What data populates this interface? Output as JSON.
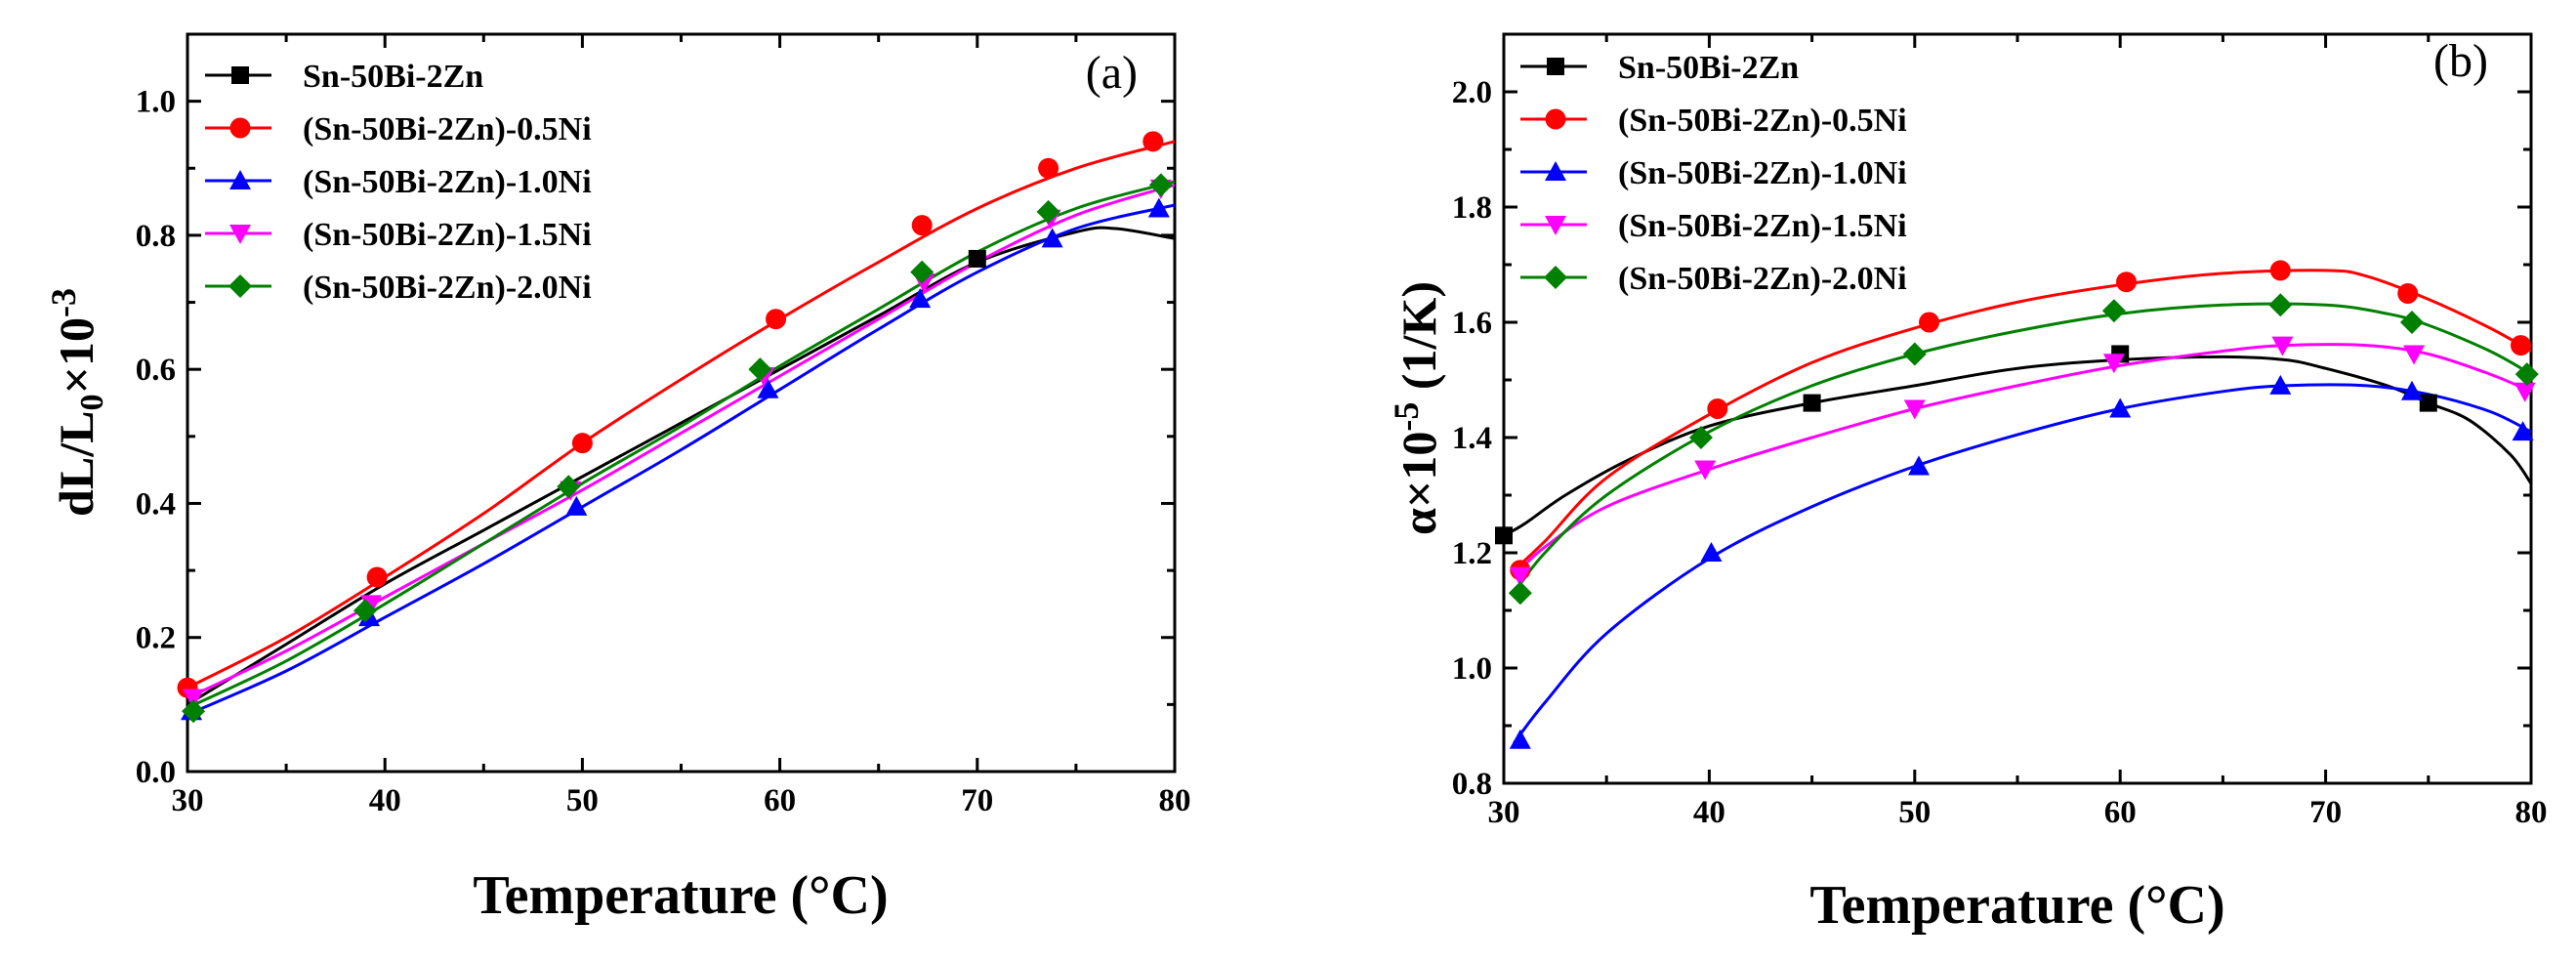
{
  "chart_data": [
    {
      "type": "line",
      "panel_label": "(a)",
      "xlabel": "Temperature (°C)",
      "ylabel": {
        "main": "dL/L",
        "sub": "0",
        "tail": "×10",
        "sup": "-3"
      },
      "xlim": [
        30,
        80
      ],
      "ylim": [
        0.0,
        1.1
      ],
      "xticks": [
        30,
        40,
        50,
        60,
        70,
        80
      ],
      "yticks": [
        0.0,
        0.2,
        0.4,
        0.6,
        0.8,
        1.0
      ],
      "ytick_labels": [
        "0.0",
        "0.2",
        "0.4",
        "0.6",
        "0.8",
        "1.0"
      ],
      "grid": false,
      "legend_position": "top-left",
      "series": [
        {
          "name": "Sn-50Bi-2Zn",
          "color": "#000000",
          "marker": "square",
          "curve": [
            [
              30,
              0.1
            ],
            [
              35,
              0.19
            ],
            [
              40,
              0.28
            ],
            [
              45,
              0.36
            ],
            [
              50,
              0.44
            ],
            [
              55,
              0.52
            ],
            [
              60,
              0.6
            ],
            [
              65,
              0.68
            ],
            [
              70,
              0.76
            ],
            [
              75,
              0.805
            ],
            [
              77,
              0.81
            ],
            [
              80,
              0.795
            ]
          ],
          "markers": [
            [
              70,
              0.765
            ]
          ]
        },
        {
          "name": "(Sn-50Bi-2Zn)-0.5Ni",
          "color": "#ff0000",
          "marker": "circle",
          "curve": [
            [
              30,
              0.125
            ],
            [
              35,
              0.2
            ],
            [
              40,
              0.29
            ],
            [
              45,
              0.385
            ],
            [
              50,
              0.49
            ],
            [
              55,
              0.585
            ],
            [
              60,
              0.675
            ],
            [
              65,
              0.76
            ],
            [
              70,
              0.84
            ],
            [
              75,
              0.9
            ],
            [
              80,
              0.94
            ]
          ],
          "markers": [
            [
              30,
              0.125
            ],
            [
              39.6,
              0.29
            ],
            [
              50,
              0.49
            ],
            [
              59.8,
              0.675
            ],
            [
              67.2,
              0.815
            ],
            [
              73.6,
              0.9
            ],
            [
              78.9,
              0.94
            ]
          ]
        },
        {
          "name": "(Sn-50Bi-2Zn)-1.0Ni",
          "color": "#0000ff",
          "marker": "triangle-up",
          "curve": [
            [
              30,
              0.085
            ],
            [
              35,
              0.15
            ],
            [
              40,
              0.23
            ],
            [
              45,
              0.31
            ],
            [
              50,
              0.395
            ],
            [
              55,
              0.48
            ],
            [
              60,
              0.57
            ],
            [
              65,
              0.66
            ],
            [
              70,
              0.745
            ],
            [
              75,
              0.81
            ],
            [
              80,
              0.845
            ]
          ],
          "markers": [
            [
              30.2,
              0.09
            ],
            [
              39.2,
              0.23
            ],
            [
              49.7,
              0.395
            ],
            [
              59.4,
              0.57
            ],
            [
              67.1,
              0.705
            ],
            [
              73.8,
              0.795
            ],
            [
              79.2,
              0.84
            ]
          ]
        },
        {
          "name": "(Sn-50Bi-2Zn)-1.5Ni",
          "color": "#ff00ff",
          "marker": "triangle-down",
          "curve": [
            [
              30,
              0.11
            ],
            [
              35,
              0.18
            ],
            [
              40,
              0.26
            ],
            [
              45,
              0.34
            ],
            [
              50,
              0.42
            ],
            [
              55,
              0.505
            ],
            [
              60,
              0.59
            ],
            [
              65,
              0.675
            ],
            [
              70,
              0.76
            ],
            [
              75,
              0.83
            ],
            [
              80,
              0.875
            ]
          ],
          "markers": [
            [
              30.3,
              0.11
            ],
            [
              39.3,
              0.25
            ],
            [
              49.4,
              0.42
            ],
            [
              59.2,
              0.59
            ],
            [
              67.3,
              0.73
            ],
            [
              73.7,
              0.825
            ],
            [
              79.3,
              0.87
            ]
          ]
        },
        {
          "name": "(Sn-50Bi-2Zn)-2.0Ni",
          "color": "#008000",
          "marker": "diamond",
          "curve": [
            [
              30,
              0.095
            ],
            [
              35,
              0.165
            ],
            [
              40,
              0.25
            ],
            [
              45,
              0.34
            ],
            [
              50,
              0.43
            ],
            [
              55,
              0.515
            ],
            [
              60,
              0.605
            ],
            [
              65,
              0.69
            ],
            [
              70,
              0.775
            ],
            [
              75,
              0.84
            ],
            [
              80,
              0.88
            ]
          ],
          "markers": [
            [
              30.3,
              0.09
            ],
            [
              39,
              0.24
            ],
            [
              49.3,
              0.425
            ],
            [
              59,
              0.6
            ],
            [
              67.2,
              0.745
            ],
            [
              73.6,
              0.835
            ],
            [
              79.3,
              0.875
            ]
          ]
        }
      ]
    },
    {
      "type": "line",
      "panel_label": "(b)",
      "xlabel": "Temperature (°C)",
      "ylabel": {
        "main": "α×10",
        "sup": "-5",
        "tail": " (1/K)"
      },
      "xlim": [
        30,
        80
      ],
      "ylim": [
        0.8,
        2.1
      ],
      "xticks": [
        30,
        40,
        50,
        60,
        70,
        80
      ],
      "yticks": [
        0.8,
        1.0,
        1.2,
        1.4,
        1.6,
        1.8,
        2.0
      ],
      "ytick_labels": [
        "0.8",
        "1.0",
        "1.2",
        "1.4",
        "1.6",
        "1.8",
        "2.0"
      ],
      "grid": false,
      "legend_position": "top-left",
      "series": [
        {
          "name": "Sn-50Bi-2Zn",
          "color": "#000000",
          "marker": "square",
          "curve": [
            [
              30,
              1.23
            ],
            [
              31,
              1.25
            ],
            [
              33,
              1.3
            ],
            [
              36,
              1.36
            ],
            [
              40,
              1.42
            ],
            [
              45,
              1.46
            ],
            [
              50,
              1.49
            ],
            [
              55,
              1.52
            ],
            [
              60,
              1.535
            ],
            [
              65,
              1.54
            ],
            [
              68,
              1.535
            ],
            [
              70,
              1.52
            ],
            [
              73,
              1.49
            ],
            [
              75,
              1.46
            ],
            [
              77,
              1.43
            ],
            [
              79,
              1.37
            ],
            [
              80,
              1.32
            ]
          ],
          "markers": [
            [
              30,
              1.23
            ],
            [
              45,
              1.46
            ],
            [
              60,
              1.545
            ],
            [
              75,
              1.46
            ]
          ]
        },
        {
          "name": "(Sn-50Bi-2Zn)-0.5Ni",
          "color": "#ff0000",
          "marker": "circle",
          "curve": [
            [
              30.5,
              1.17
            ],
            [
              32,
              1.22
            ],
            [
              35,
              1.33
            ],
            [
              40,
              1.44
            ],
            [
              45,
              1.53
            ],
            [
              50,
              1.59
            ],
            [
              55,
              1.635
            ],
            [
              60,
              1.665
            ],
            [
              65,
              1.685
            ],
            [
              70,
              1.69
            ],
            [
              72,
              1.68
            ],
            [
              75,
              1.64
            ],
            [
              78,
              1.59
            ],
            [
              80,
              1.55
            ]
          ],
          "markers": [
            [
              30.8,
              1.17
            ],
            [
              40.4,
              1.45
            ],
            [
              50.7,
              1.6
            ],
            [
              60.3,
              1.67
            ],
            [
              67.8,
              1.69
            ],
            [
              74,
              1.65
            ],
            [
              79.5,
              1.56
            ]
          ]
        },
        {
          "name": "(Sn-50Bi-2Zn)-1.0Ni",
          "color": "#0000ff",
          "marker": "triangle-up",
          "curve": [
            [
              30.5,
              0.87
            ],
            [
              32,
              0.94
            ],
            [
              35,
              1.06
            ],
            [
              40,
              1.19
            ],
            [
              45,
              1.28
            ],
            [
              50,
              1.35
            ],
            [
              55,
              1.405
            ],
            [
              60,
              1.45
            ],
            [
              65,
              1.48
            ],
            [
              68,
              1.49
            ],
            [
              72,
              1.49
            ],
            [
              75,
              1.475
            ],
            [
              78,
              1.445
            ],
            [
              80,
              1.41
            ]
          ],
          "markers": [
            [
              30.8,
              0.875
            ],
            [
              40.1,
              1.2
            ],
            [
              50.2,
              1.35
            ],
            [
              60,
              1.45
            ],
            [
              67.8,
              1.49
            ],
            [
              74.2,
              1.48
            ],
            [
              79.6,
              1.41
            ]
          ]
        },
        {
          "name": "(Sn-50Bi-2Zn)-1.5Ni",
          "color": "#ff00ff",
          "marker": "triangle-down",
          "curve": [
            [
              30.5,
              1.16
            ],
            [
              32,
              1.21
            ],
            [
              35,
              1.28
            ],
            [
              40,
              1.345
            ],
            [
              45,
              1.4
            ],
            [
              50,
              1.45
            ],
            [
              55,
              1.49
            ],
            [
              60,
              1.525
            ],
            [
              65,
              1.55
            ],
            [
              68,
              1.56
            ],
            [
              72,
              1.56
            ],
            [
              75,
              1.545
            ],
            [
              78,
              1.51
            ],
            [
              80,
              1.48
            ]
          ],
          "markers": [
            [
              30.8,
              1.16
            ],
            [
              39.8,
              1.345
            ],
            [
              50,
              1.45
            ],
            [
              59.7,
              1.53
            ],
            [
              67.9,
              1.56
            ],
            [
              74.3,
              1.545
            ],
            [
              79.7,
              1.48
            ]
          ]
        },
        {
          "name": "(Sn-50Bi-2Zn)-2.0Ni",
          "color": "#008000",
          "marker": "diamond",
          "curve": [
            [
              30.5,
              1.13
            ],
            [
              32,
              1.2
            ],
            [
              35,
              1.3
            ],
            [
              40,
              1.41
            ],
            [
              45,
              1.49
            ],
            [
              50,
              1.545
            ],
            [
              55,
              1.585
            ],
            [
              60,
              1.615
            ],
            [
              65,
              1.63
            ],
            [
              70,
              1.63
            ],
            [
              73,
              1.615
            ],
            [
              75,
              1.595
            ],
            [
              78,
              1.55
            ],
            [
              80,
              1.51
            ]
          ],
          "markers": [
            [
              30.8,
              1.13
            ],
            [
              39.6,
              1.4
            ],
            [
              50,
              1.545
            ],
            [
              59.7,
              1.62
            ],
            [
              67.8,
              1.63
            ],
            [
              74.2,
              1.6
            ],
            [
              79.8,
              1.51
            ]
          ]
        }
      ]
    }
  ]
}
